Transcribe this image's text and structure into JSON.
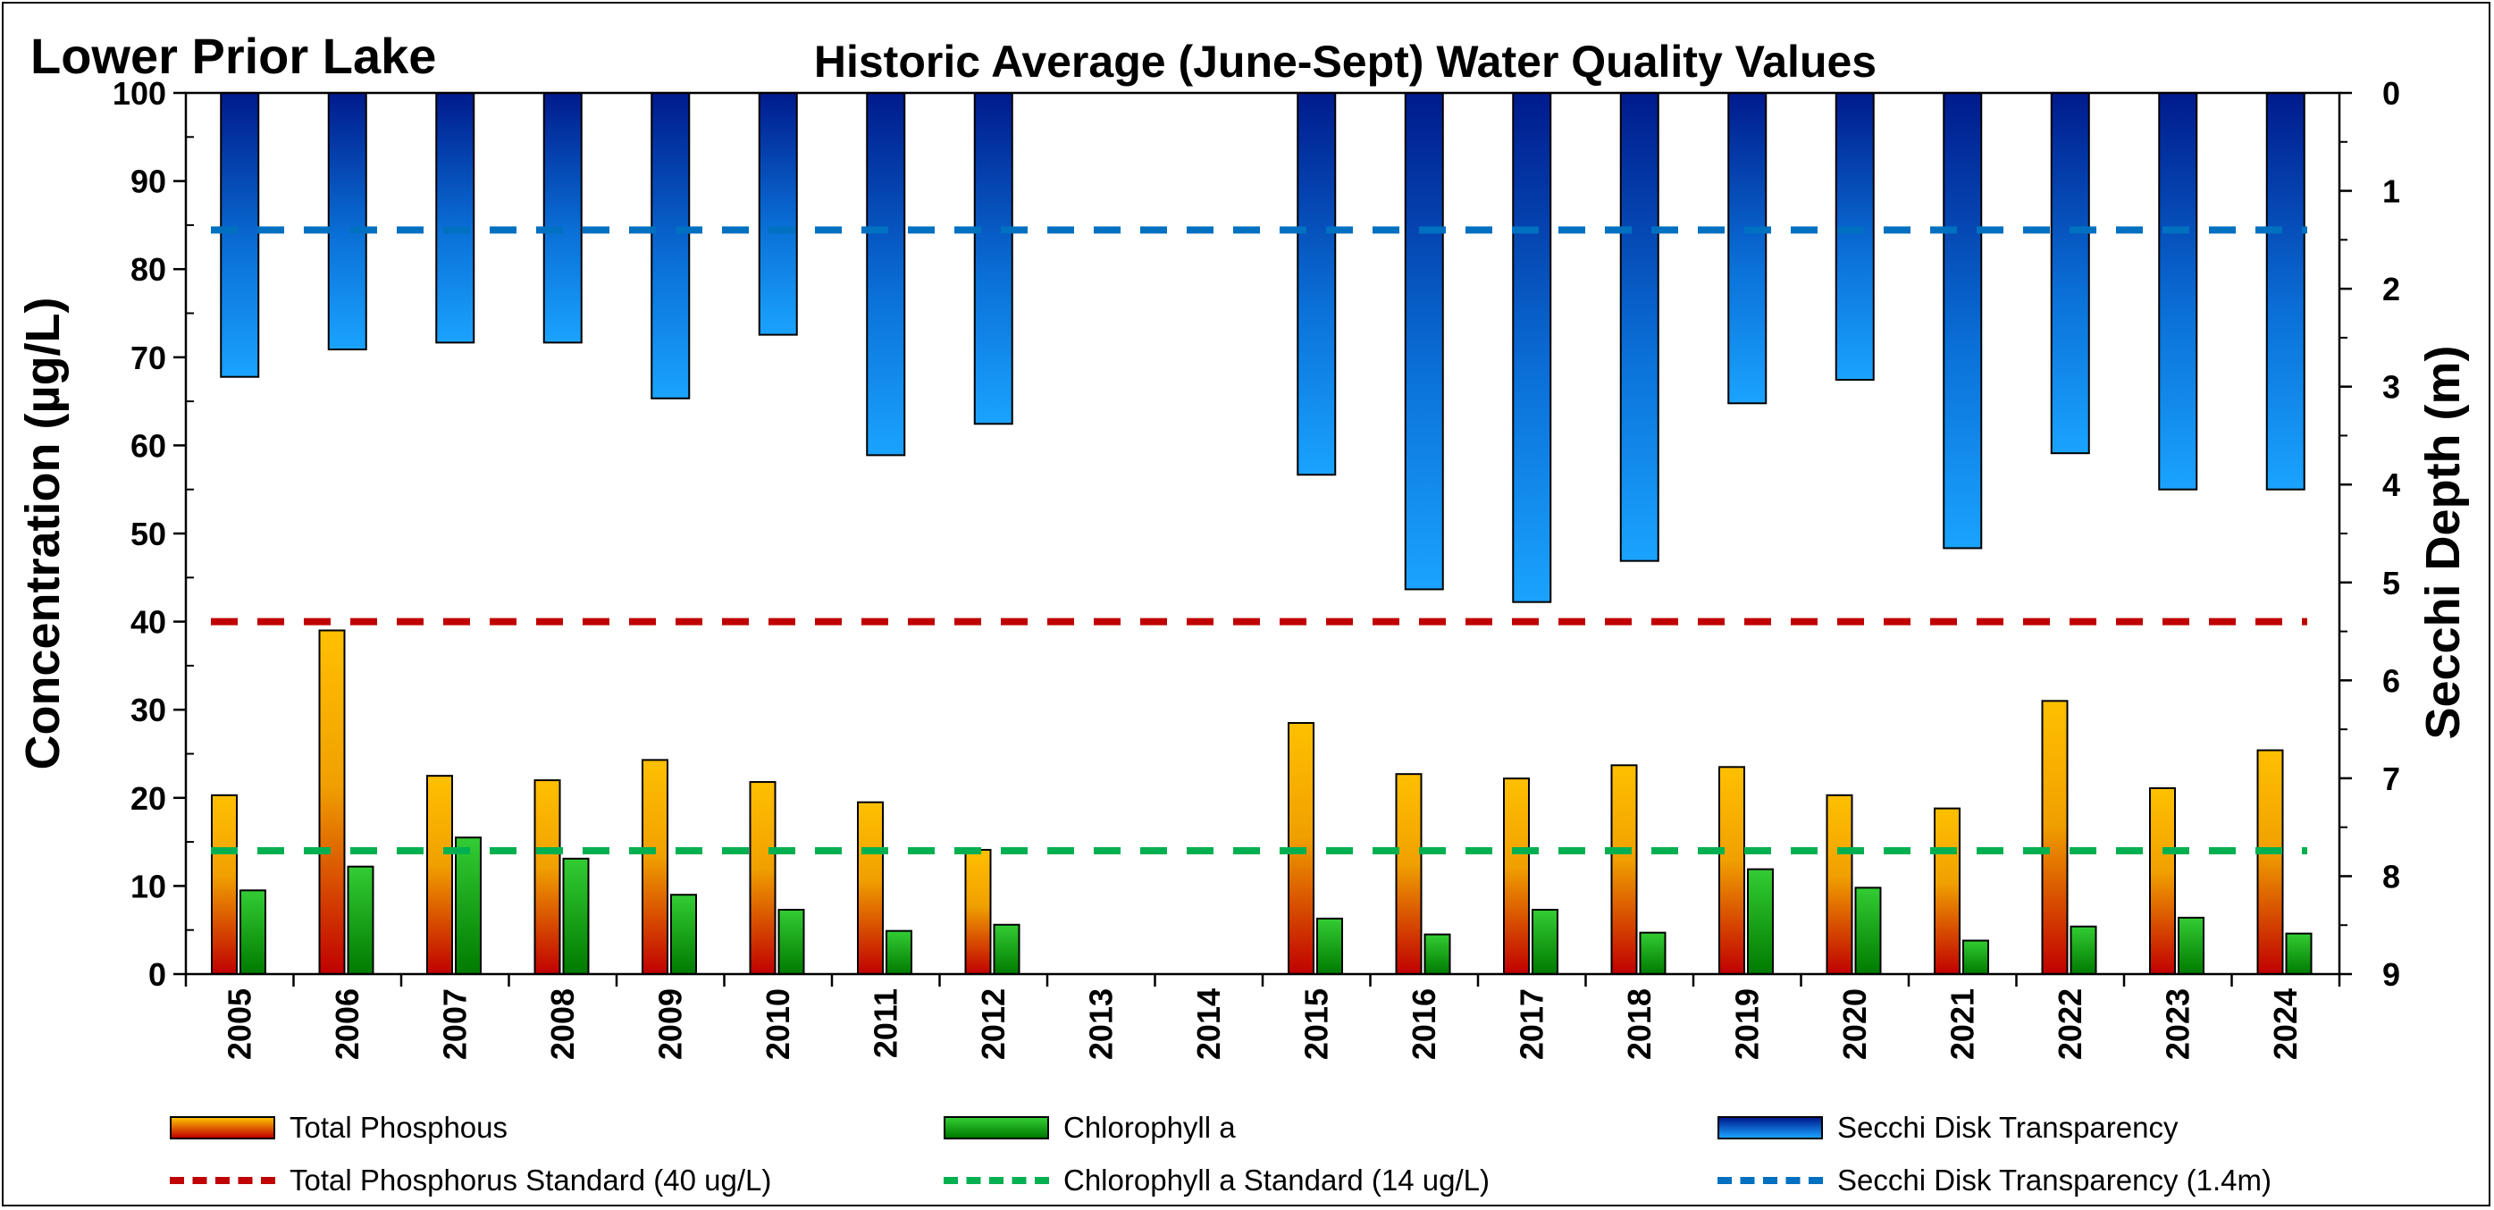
{
  "lake_title": "Lower Prior Lake",
  "chart_data": {
    "type": "bar",
    "title": "Historic Average (June-Sept) Water Quality Values",
    "ylabel": "Concentration (µg/L)",
    "y2label": "Secchi Depth (m)",
    "ylim": [
      0,
      100
    ],
    "y2lim": [
      0,
      9
    ],
    "y2_reversed": true,
    "yticks": [
      "0",
      "10",
      "20",
      "30",
      "40",
      "50",
      "60",
      "70",
      "80",
      "90",
      "100"
    ],
    "y2ticks": [
      "0",
      "1",
      "2",
      "3",
      "4",
      "5",
      "6",
      "7",
      "8",
      "9"
    ],
    "categories": [
      "2005",
      "2006",
      "2007",
      "2008",
      "2009",
      "2010",
      "2011",
      "2012",
      "2013",
      "2014",
      "2015",
      "2016",
      "2017",
      "2018",
      "2019",
      "2020",
      "2021",
      "2022",
      "2023",
      "2024"
    ],
    "series": [
      {
        "name": "Total Phosphous",
        "axis": "left",
        "color_top": "#ffc000",
        "color_bottom": "#c00000",
        "values": [
          20.3,
          39.0,
          22.5,
          22.0,
          24.3,
          21.8,
          19.5,
          14.1,
          null,
          null,
          28.5,
          22.7,
          22.2,
          23.7,
          23.5,
          20.3,
          18.8,
          31.0,
          21.1,
          25.4
        ]
      },
      {
        "name": "Chlorophyll a",
        "axis": "left",
        "color_top": "#33cc33",
        "color_bottom": "#007a00",
        "values": [
          9.5,
          12.2,
          15.5,
          13.1,
          9.0,
          7.3,
          4.9,
          5.6,
          null,
          null,
          6.3,
          4.5,
          7.3,
          4.7,
          11.9,
          9.8,
          3.8,
          5.4,
          6.4,
          4.6
        ]
      },
      {
        "name": "Secchi Disk Transparency",
        "axis": "right",
        "color_top": "#001a8c",
        "color_bottom": "#1aa3ff",
        "values": [
          2.9,
          2.62,
          2.55,
          2.55,
          3.12,
          2.47,
          3.7,
          3.38,
          null,
          null,
          3.9,
          5.07,
          5.2,
          4.78,
          3.17,
          2.93,
          4.65,
          3.68,
          4.05,
          4.05
        ]
      }
    ],
    "reference_lines": [
      {
        "name": "Total Phosphorus Standard (40 ug/L)",
        "axis": "left",
        "value": 40,
        "color": "#c00000"
      },
      {
        "name": "Chlorophyll a Standard (14 ug/L)",
        "axis": "left",
        "value": 14,
        "color": "#00b050"
      },
      {
        "name": "Secchi Disk Transparency (1.4m)",
        "axis": "right",
        "value": 1.4,
        "color": "#0070c0"
      }
    ],
    "legend_position": "bottom",
    "grid": false
  }
}
